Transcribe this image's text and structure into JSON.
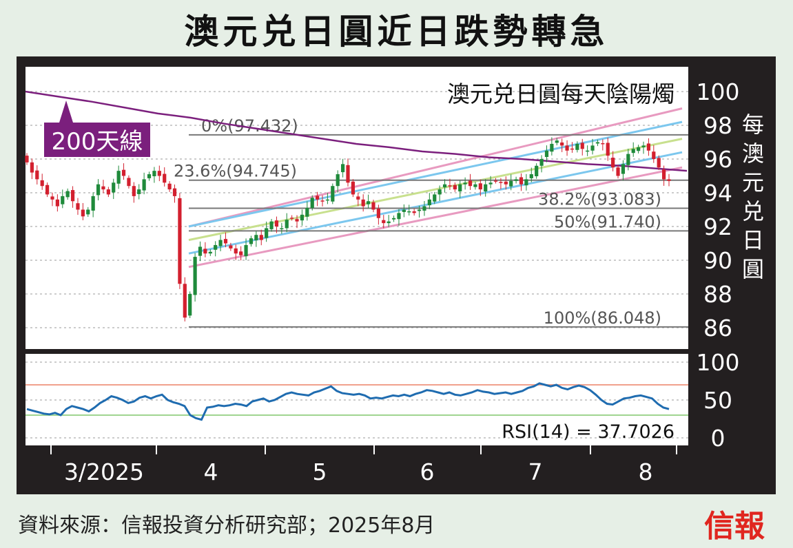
{
  "title": "澳元兑日圓近日跌勢轉急",
  "source": "資料來源：信報投資分析研究部；2025年8月",
  "logo": "信報",
  "colors": {
    "up": "#1f8a3b",
    "down": "#d3202f",
    "ma200": "#7b1f7d",
    "fib": "#777777",
    "pink": "#e89ac0",
    "blue": "#7cc7ee",
    "green": "#c8e08e",
    "rsi": "#1f6cb0",
    "rsi_high": "#f0a08c",
    "rsi_low": "#9fd48f"
  },
  "chart_data": [
    {
      "type": "candlestick",
      "title": "澳元兑日圓每天陰陽燭",
      "ylabel": "每澳元兑日圓",
      "ylim": [
        85,
        101
      ],
      "yticks": [
        86,
        88,
        90,
        92,
        94,
        96,
        98,
        100
      ],
      "xtick_labels": [
        "3/2025",
        "4",
        "5",
        "6",
        "7",
        "8"
      ],
      "ma200_label": "200天線",
      "ma200": [
        100.0,
        99.7,
        99.4,
        99.05,
        98.7,
        98.45,
        98.1,
        97.8,
        97.5,
        97.2,
        96.9,
        96.7,
        96.45,
        96.3,
        96.1,
        96.0,
        95.85,
        95.7,
        95.6,
        95.45,
        95.3
      ],
      "fibonacci": [
        {
          "label": "0%(97.432)",
          "value": 97.432
        },
        {
          "label": "23.6%(94.745)",
          "value": 94.745
        },
        {
          "label": "38.2%(93.083)",
          "value": 93.083
        },
        {
          "label": "50%(91.740)",
          "value": 91.74
        },
        {
          "label": "100%(86.048)",
          "value": 86.048
        }
      ],
      "channel_lines": [
        {
          "color": "pink",
          "start": 92.0,
          "end": 99.0
        },
        {
          "color": "blue",
          "start": 92.0,
          "end": 98.2
        },
        {
          "color": "green",
          "start": 91.2,
          "end": 97.2
        },
        {
          "color": "blue",
          "start": 90.4,
          "end": 96.4
        },
        {
          "color": "pink",
          "start": 89.6,
          "end": 95.5
        }
      ],
      "closes": [
        95.8,
        95.2,
        94.8,
        94.4,
        93.9,
        93.6,
        93.2,
        93.8,
        94.1,
        93.5,
        93.0,
        92.6,
        93.0,
        93.8,
        94.5,
        94.2,
        93.9,
        94.6,
        95.3,
        95.0,
        94.4,
        93.8,
        94.2,
        94.8,
        95.1,
        95.3,
        95.0,
        94.6,
        94.2,
        93.8,
        88.6,
        86.6,
        88.0,
        90.2,
        90.8,
        90.4,
        90.5,
        90.9,
        91.2,
        91.0,
        90.7,
        90.4,
        90.3,
        90.9,
        91.3,
        91.5,
        91.2,
        91.9,
        92.3,
        92.0,
        91.9,
        92.4,
        92.5,
        92.3,
        92.7,
        93.1,
        93.7,
        93.6,
        93.5,
        93.6,
        94.4,
        95.1,
        95.7,
        94.6,
        93.9,
        93.6,
        93.2,
        93.5,
        93.0,
        92.5,
        92.2,
        92.3,
        92.5,
        92.8,
        93.0,
        92.9,
        92.8,
        93.0,
        93.2,
        93.6,
        93.9,
        94.2,
        94.5,
        94.4,
        94.2,
        94.5,
        94.6,
        94.4,
        94.5,
        94.2,
        94.5,
        94.6,
        94.7,
        94.6,
        94.5,
        94.7,
        94.8,
        94.5,
        94.8,
        95.1,
        95.6,
        96.0,
        96.5,
        96.9,
        97.1,
        96.8,
        96.5,
        96.6,
        96.9,
        96.6,
        96.5,
        96.8,
        97.0,
        96.9,
        96.2,
        95.5,
        95.0,
        95.7,
        96.3,
        96.6,
        96.7,
        96.8,
        96.5,
        96.0,
        95.5,
        94.8,
        94.7
      ]
    },
    {
      "type": "line",
      "title": "RSI(14) = 37.7026",
      "ylim": [
        0,
        100
      ],
      "yticks": [
        0,
        50,
        100
      ],
      "levels": [
        70,
        30
      ],
      "values": [
        38,
        36,
        34,
        32,
        31,
        33,
        30,
        38,
        42,
        40,
        38,
        35,
        40,
        46,
        50,
        55,
        53,
        50,
        46,
        48,
        53,
        55,
        52,
        55,
        57,
        50,
        47,
        45,
        42,
        30,
        26,
        24,
        40,
        41,
        43,
        42,
        43,
        45,
        44,
        42,
        48,
        50,
        52,
        48,
        50,
        54,
        58,
        60,
        58,
        57,
        56,
        60,
        62,
        65,
        68,
        62,
        59,
        58,
        57,
        58,
        56,
        52,
        53,
        52,
        54,
        56,
        55,
        57,
        55,
        58,
        60,
        63,
        62,
        60,
        58,
        60,
        57,
        56,
        58,
        60,
        63,
        61,
        60,
        58,
        59,
        60,
        58,
        60,
        62,
        66,
        68,
        72,
        70,
        68,
        70,
        66,
        64,
        67,
        69,
        67,
        63,
        57,
        50,
        45,
        44,
        48,
        52,
        53,
        55,
        56,
        54,
        52,
        45,
        40,
        38
      ]
    }
  ]
}
